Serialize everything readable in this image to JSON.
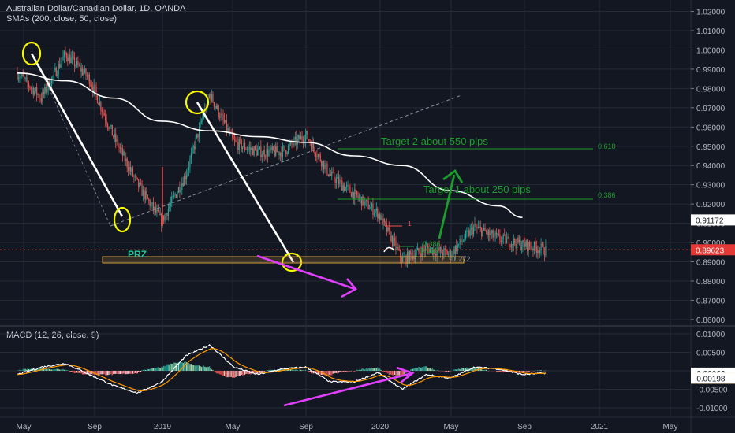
{
  "header": {
    "title": "Australian Dollar/Canadian Dollar, 1D, OANDA",
    "indicator": "SMAs (200, close, 50, close)",
    "macd": "MACD (12, 26, close, 9)"
  },
  "colors": {
    "background": "#131722",
    "grid": "#262b38",
    "bull": "#26a69a",
    "bear": "#ef5350",
    "sma": "#ffffff",
    "annotation_white": "#ffffff",
    "circle": "#f7f700",
    "magenta": "#e040fb",
    "target_green": "#1b9e2b",
    "prz": "#d4a23c",
    "price_tag": "#e53935",
    "macd_line": "#ffffff",
    "signal_line": "#ff9800"
  },
  "annotations": {
    "target2": "Target 2 about 550 pips",
    "target1": "Target 1 about 250 pips",
    "fib_618_upper": "0.618",
    "fib_386_upper": "0.386",
    "fib_386_lower": "0.386",
    "fib_618_lower": "0.618",
    "prz": "PRZ",
    "fib_1272": "1.272",
    "fib_1": "1"
  },
  "chart_data": [
    {
      "type": "candlestick",
      "title": "Australian Dollar/Canadian Dollar, 1D, OANDA",
      "series_name": "SMAs (200, close, 50, close)",
      "x_ticks": [
        "May",
        "Sep",
        "2019",
        "May",
        "Sep",
        "2020",
        "May",
        "Sep",
        "2021",
        "May"
      ],
      "y_ticks": [
        "1.02000",
        "1.01000",
        "1.00000",
        "0.99000",
        "0.98000",
        "0.97000",
        "0.96000",
        "0.95000",
        "0.94000",
        "0.93000",
        "0.92000",
        "0.91000",
        "0.90000",
        "0.89000",
        "0.88000",
        "0.87000",
        "0.86000"
      ],
      "ylim": [
        0.8575,
        1.0235
      ],
      "last_price": "0.89623",
      "price_labels": [
        "0.91172",
        "0.89623"
      ],
      "approx_path": [
        {
          "x": "2018-04",
          "y": 0.988
        },
        {
          "x": "2018-05",
          "y": 0.975
        },
        {
          "x": "2018-06",
          "y": 0.998
        },
        {
          "x": "2018-07",
          "y": 0.985
        },
        {
          "x": "2018-08",
          "y": 0.955
        },
        {
          "x": "2018-09",
          "y": 0.93
        },
        {
          "x": "2018-10",
          "y": 0.911
        },
        {
          "x": "2018-11",
          "y": 0.935
        },
        {
          "x": "2018-12",
          "y": 0.977
        },
        {
          "x": "2019-01",
          "y": 0.952
        },
        {
          "x": "2019-02",
          "y": 0.947
        },
        {
          "x": "2019-03",
          "y": 0.947
        },
        {
          "x": "2019-04",
          "y": 0.956
        },
        {
          "x": "2019-05",
          "y": 0.935
        },
        {
          "x": "2019-06",
          "y": 0.925
        },
        {
          "x": "2019-07",
          "y": 0.915
        },
        {
          "x": "2019-08",
          "y": 0.891
        },
        {
          "x": "2019-09",
          "y": 0.897
        },
        {
          "x": "2019-10",
          "y": 0.894
        },
        {
          "x": "2019-11",
          "y": 0.908
        },
        {
          "x": "2019-12",
          "y": 0.902
        },
        {
          "x": "2020-01",
          "y": 0.899
        },
        {
          "x": "2020-02",
          "y": 0.896
        }
      ],
      "sma200": [
        {
          "x": "2018-04",
          "y": 0.988
        },
        {
          "x": "2018-06",
          "y": 0.984
        },
        {
          "x": "2018-08",
          "y": 0.975
        },
        {
          "x": "2018-10",
          "y": 0.963
        },
        {
          "x": "2018-12",
          "y": 0.958
        },
        {
          "x": "2019-02",
          "y": 0.955
        },
        {
          "x": "2019-04",
          "y": 0.952
        },
        {
          "x": "2019-06",
          "y": 0.945
        },
        {
          "x": "2019-08",
          "y": 0.94
        },
        {
          "x": "2019-10",
          "y": 0.927
        },
        {
          "x": "2019-12",
          "y": 0.919
        },
        {
          "x": "2020-01",
          "y": 0.913
        }
      ]
    },
    {
      "type": "histogram",
      "title": "MACD (12, 26, close, 9)",
      "y_ticks": [
        "0.01000",
        "0.00500",
        "0.00000",
        "-0.00500",
        "-0.01000"
      ],
      "ylim": [
        -0.0117,
        0.0117
      ],
      "value_labels": [
        "-0.00062",
        "-0.00136",
        "-0.00198"
      ],
      "approx_macd": [
        {
          "x": "2018-04",
          "y": -0.001
        },
        {
          "x": "2018-05",
          "y": 0.001
        },
        {
          "x": "2018-06",
          "y": 0.002
        },
        {
          "x": "2018-07",
          "y": -0.001
        },
        {
          "x": "2018-08",
          "y": -0.004
        },
        {
          "x": "2018-09",
          "y": -0.006
        },
        {
          "x": "2018-10",
          "y": -0.003
        },
        {
          "x": "2018-11",
          "y": 0.004
        },
        {
          "x": "2018-12",
          "y": 0.007
        },
        {
          "x": "2019-01",
          "y": 0.001
        },
        {
          "x": "2019-02",
          "y": -0.001
        },
        {
          "x": "2019-03",
          "y": 0.0005
        },
        {
          "x": "2019-04",
          "y": 0.001
        },
        {
          "x": "2019-05",
          "y": -0.003
        },
        {
          "x": "2019-06",
          "y": -0.003
        },
        {
          "x": "2019-07",
          "y": -0.0005
        },
        {
          "x": "2019-08",
          "y": -0.005
        },
        {
          "x": "2019-09",
          "y": -0.001
        },
        {
          "x": "2019-10",
          "y": -0.002
        },
        {
          "x": "2019-11",
          "y": 0.001
        },
        {
          "x": "2019-12",
          "y": 0.0005
        },
        {
          "x": "2020-01",
          "y": -0.001
        },
        {
          "x": "2020-02",
          "y": -0.0006
        }
      ]
    }
  ]
}
